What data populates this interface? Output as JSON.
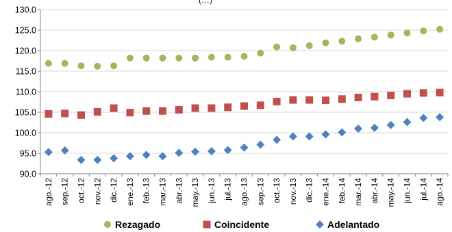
{
  "chart_data": {
    "type": "scatter",
    "title": "(…)",
    "categories": [
      "ago.-12",
      "sep.-12",
      "oct.-12",
      "nov.-12",
      "dic.-12",
      "ene.-13",
      "feb.-13",
      "mar.-13",
      "abr.-13",
      "may.-13",
      "jun.-13",
      "jul.-13",
      "ago.-13",
      "sep.-13",
      "oct.-13",
      "nov.-13",
      "dic.-13",
      "ene.-14",
      "feb.-14",
      "mar.-14",
      "abr.-14",
      "may.-14",
      "jun.-14",
      "jul.-14",
      "ago.-14"
    ],
    "ylim": [
      90.0,
      130.0
    ],
    "yticks": [
      "90.0",
      "95.0",
      "100.0",
      "105.0",
      "110.0",
      "115.0",
      "120.0",
      "125.0",
      "130.0"
    ],
    "grid": "horizontal",
    "legend_position": "bottom",
    "series": [
      {
        "name": "Rezagado",
        "color": "#9BBB59",
        "marker": "circle",
        "values": [
          116.9,
          116.9,
          116.3,
          116.2,
          116.3,
          118.2,
          118.2,
          118.2,
          118.2,
          118.2,
          118.4,
          118.4,
          118.6,
          119.4,
          120.9,
          120.7,
          121.2,
          121.9,
          122.3,
          122.9,
          123.3,
          123.8,
          124.3,
          124.8,
          125.2
        ]
      },
      {
        "name": "Coincidente",
        "color": "#C0504D",
        "marker": "square",
        "values": [
          104.6,
          104.7,
          104.3,
          105.1,
          106.0,
          104.9,
          105.3,
          105.3,
          105.6,
          106.0,
          106.0,
          106.2,
          106.5,
          106.7,
          107.6,
          108.0,
          108.0,
          107.9,
          108.2,
          108.6,
          108.8,
          109.1,
          109.5,
          109.7,
          109.8
        ]
      },
      {
        "name": "Adelantado",
        "color": "#4F81BD",
        "marker": "diamond",
        "values": [
          95.3,
          95.7,
          93.4,
          93.4,
          93.8,
          94.3,
          94.6,
          94.3,
          95.1,
          95.4,
          95.5,
          95.8,
          96.4,
          97.1,
          98.3,
          99.1,
          99.1,
          99.6,
          100.1,
          101.0,
          101.2,
          101.9,
          102.6,
          103.6,
          103.8
        ]
      }
    ]
  }
}
